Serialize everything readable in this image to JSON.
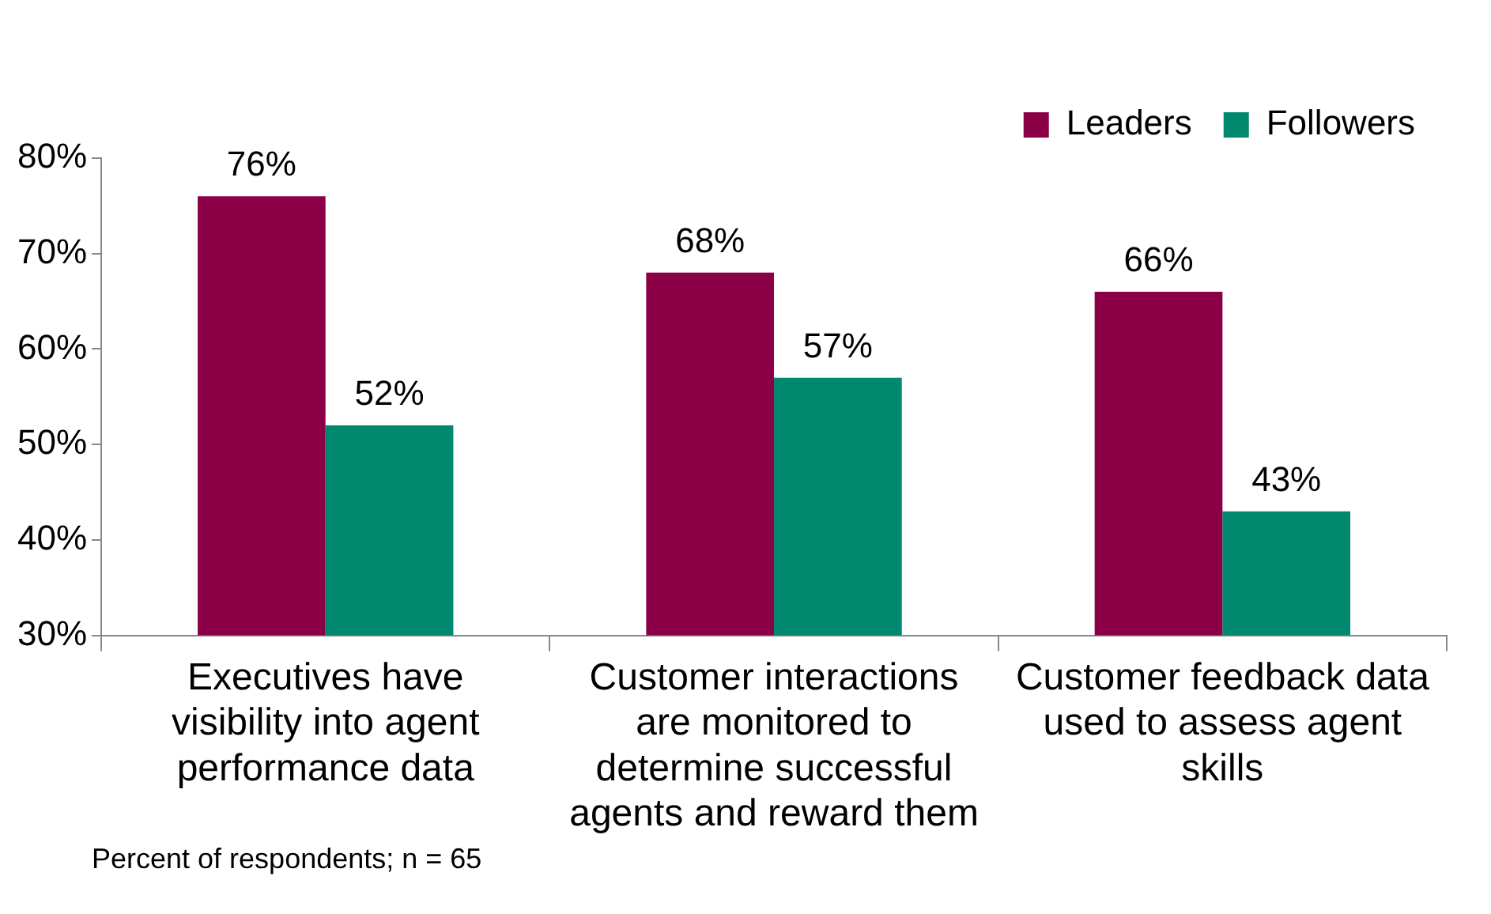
{
  "chart_data": {
    "type": "bar",
    "categories": [
      "Executives have visibility into agent performance data",
      "Customer interactions are monitored to determine successful agents and reward them",
      "Customer feedback data used to assess agent skills"
    ],
    "series": [
      {
        "name": "Leaders",
        "color": "#8b0046",
        "values": [
          76,
          68,
          66
        ]
      },
      {
        "name": "Followers",
        "color": "#00896e",
        "values": [
          52,
          57,
          43
        ]
      }
    ],
    "ylim": [
      30,
      80
    ],
    "yticks": [
      {
        "value": 30,
        "label": "30%"
      },
      {
        "value": 40,
        "label": "40%"
      },
      {
        "value": 50,
        "label": "50%"
      },
      {
        "value": 60,
        "label": "60%"
      },
      {
        "value": 70,
        "label": "70%"
      },
      {
        "value": 80,
        "label": "80%"
      }
    ],
    "value_labels": [
      [
        "76%",
        "68%",
        "66%"
      ],
      [
        "52%",
        "57%",
        "43%"
      ]
    ],
    "legend": "top right",
    "grid": false,
    "annotations": [
      "Percent of respondents; n = 65"
    ]
  }
}
